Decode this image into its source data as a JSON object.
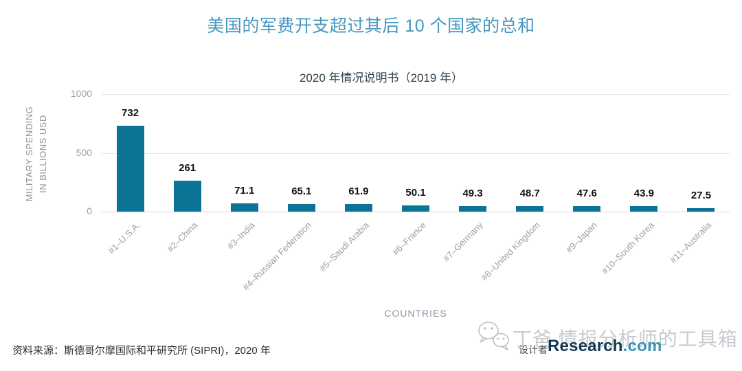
{
  "header": {
    "title": "美国的军费开支超过其后 10 个国家的总和",
    "menu_icon": "hamburger-icon"
  },
  "chart_data": {
    "type": "bar",
    "title": "美国的军费开支超过其后 10 个国家的总和",
    "subtitle": "2020 年情况说明书（2019 年）",
    "categories": [
      "#1–U.S.A.",
      "#2–China",
      "#3–India",
      "#4–Russian Federation",
      "#5–Saudi Arabia",
      "#6–France",
      "#7–Germany",
      "#8–United Kingdom",
      "#9–Japan",
      "#10–South Korea",
      "#11–Australia"
    ],
    "values": [
      732,
      261,
      71.1,
      65.1,
      61.9,
      50.1,
      49.3,
      48.7,
      47.6,
      43.9,
      27.5
    ],
    "value_labels": [
      "732",
      "261",
      "71.1",
      "65.1",
      "61.9",
      "50.1",
      "49.3",
      "48.7",
      "47.6",
      "43.9",
      "27.5"
    ],
    "xlabel": "COUNTRIES",
    "ylabel_lines": [
      "MILITARY SPENDING",
      "IN BILLIONS USD"
    ],
    "yticks": [
      0,
      500,
      1000
    ],
    "ytick_labels": [
      "0",
      "500",
      "1000"
    ],
    "ylim": [
      0,
      1000
    ],
    "grid": true,
    "legend": "none",
    "bar_color": "#0b7496"
  },
  "footer": {
    "source": "资料来源：斯德哥尔摩国际和平研究所 (SIPRI)，2020 年",
    "designer_label": "设计者",
    "brand": {
      "part1": "Research",
      "part2": ".com"
    },
    "watermark_text": "丁爸 情报分析师的工具箱",
    "watermark_icon": "wechat-icon"
  },
  "colors": {
    "title_blue": "#4697bf",
    "subtitle_dark": "#32404b",
    "bar_teal": "#0b7496",
    "axis_text_gray": "#97a0a8",
    "gridline_gray": "#e7e7e7",
    "axis_line": "#ccd6eb",
    "brand_navy": "#14374f",
    "brand_blue": "#3a92b5",
    "watermark_gray": "#babfc4"
  }
}
